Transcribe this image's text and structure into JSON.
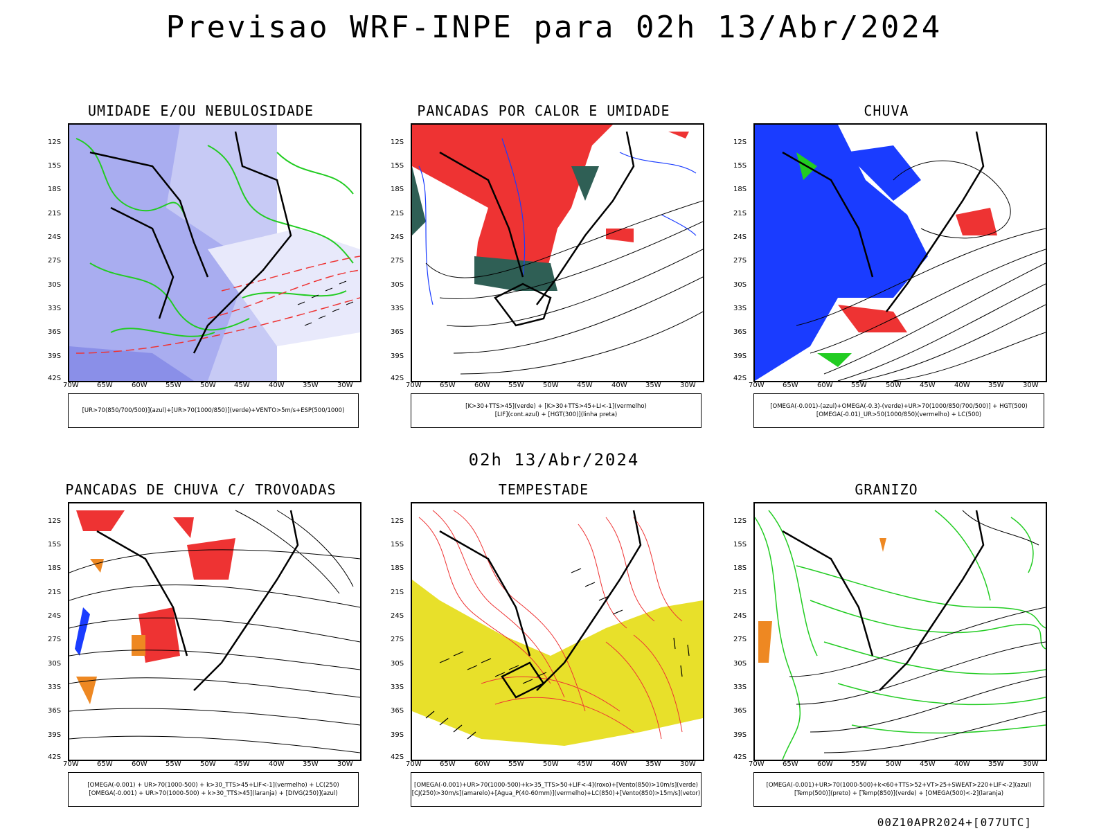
{
  "title": "Previsao WRF-INPE  para 02h 13/Abr/2024",
  "mid_time": "02h 13/Abr/2024",
  "footer": "00Z10APR2024+[077UTC]",
  "lat_labels": [
    "12S",
    "15S",
    "18S",
    "21S",
    "24S",
    "27S",
    "30S",
    "33S",
    "36S",
    "39S",
    "42S"
  ],
  "lon_labels": [
    "70W",
    "65W",
    "60W",
    "55W",
    "50W",
    "45W",
    "40W",
    "35W",
    "30W"
  ],
  "panels": [
    {
      "title": "UMIDADE E/OU NEBULOSIDADE",
      "legend": [
        "[UR>70(850/700/500)](azul)+[UR>70(1000/850)](verde)+VENTO>5m/s+ESP(500/1000)"
      ]
    },
    {
      "title": "PANCADAS POR CALOR E UMIDADE",
      "legend": [
        "[K>30+TTS>45](verde) + [K>30+TTS>45+LI<-1](vermelho)",
        "[LIF](cont.azul) + [HGT(300)](linha preta)"
      ]
    },
    {
      "title": "CHUVA",
      "legend": [
        "[OMEGA(-0.001)-(azul)+OMEGA(-0.3)-(verde)+UR>70(1000/850/700/500)] + HGT(500)",
        "[OMEGA(-0.01)_UR>50(1000/850)(vermelho) + LC(500)"
      ]
    },
    {
      "title": "PANCADAS DE CHUVA C/ TROVOADAS",
      "legend": [
        "[OMEGA(-0.001) + UR>70(1000-500) + k>30_TTS>45+LIF<-1](vermelho) + LC(250)",
        "[OMEGA(-0.001) + UR>70(1000-500) + k>30_TTS>45](laranja) + [DIVG(250)](azul)"
      ]
    },
    {
      "title": "TEMPESTADE",
      "legend": [
        "[OMEGA(-0.001)+UR>70(1000-500)+k>35_TTS>50+LIF<-4](roxo)+[Vento(850)>10m/s](verde)",
        "[CJ(250)>30m/s](amarelo)+[Agua_P(40-60mm)](vermelho)+LC(850)+[Vento(850)>15m/s](vetor)"
      ]
    },
    {
      "title": "GRANIZO",
      "legend": [
        "[OMEGA(-0.001)+UR>70(1000-500)+k<60+TTS>52+VT>25+SWEAT>220+LIF<-2](azul)",
        "[Temp(500)](preto) + [Temp(850)](verde) + [OMEGA(500)<-2](laranja)"
      ]
    }
  ],
  "colors": {
    "blue_shade": "#9aa0f0",
    "green": "#22cc22",
    "red": "#ee3333",
    "dark_teal": "#2f5f55",
    "blue": "#1a3cff",
    "orange": "#ee8822",
    "yellow": "#e8e02a"
  }
}
